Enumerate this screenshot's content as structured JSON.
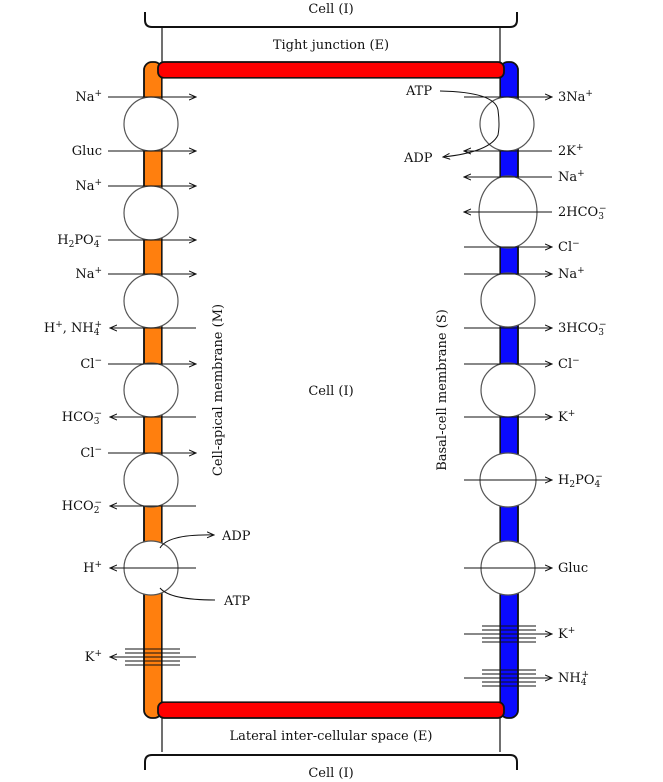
{
  "labels": {
    "cell_top": "Cell (I)",
    "tight_junction": "Tight junction (E)",
    "cell_center": "Cell (I)",
    "apical_membrane": "Cell-apical membrane (M)",
    "basal_membrane": "Basal-cell membrane (S)",
    "lateral_space": "Lateral inter-cellular space (E)",
    "cell_bottom": "Cell (I)"
  },
  "colors": {
    "apical": "#ff7f0e",
    "basal": "#0a0aff",
    "junction": "#ff0000"
  },
  "apical_transport": [
    {
      "id": "na-1",
      "label": "Na+",
      "dir": "in"
    },
    {
      "id": "gluc",
      "label": "Gluc",
      "dir": "in"
    },
    {
      "id": "na-2",
      "label": "Na+",
      "dir": "in"
    },
    {
      "id": "h2po4",
      "label": "H2PO4−",
      "dir": "in"
    },
    {
      "id": "na-3",
      "label": "Na+",
      "dir": "in"
    },
    {
      "id": "h-nh4",
      "label": "H+, NH4+",
      "dir": "out"
    },
    {
      "id": "cl-1",
      "label": "Cl−",
      "dir": "in"
    },
    {
      "id": "hco3-1",
      "label": "HCO3−",
      "dir": "out"
    },
    {
      "id": "cl-2",
      "label": "Cl−",
      "dir": "in"
    },
    {
      "id": "hco2",
      "label": "HCO2−",
      "dir": "out"
    },
    {
      "id": "h-atp",
      "label": "H+",
      "dir": "out"
    },
    {
      "id": "k",
      "label": "K+",
      "dir": "out"
    }
  ],
  "apical_atp": {
    "adp": "ADP",
    "atp": "ATP"
  },
  "basal_transport": [
    {
      "id": "3na",
      "label": "3Na+",
      "dir": "out"
    },
    {
      "id": "2k",
      "label": "2K+",
      "dir": "in"
    },
    {
      "id": "na",
      "label": "Na+",
      "dir": "in"
    },
    {
      "id": "2hco3",
      "label": "2HCO3−",
      "dir": "in"
    },
    {
      "id": "cl-1",
      "label": "Cl−",
      "dir": "out"
    },
    {
      "id": "na-2",
      "label": "Na+",
      "dir": "out"
    },
    {
      "id": "3hco3",
      "label": "3HCO3−",
      "dir": "out"
    },
    {
      "id": "cl-2",
      "label": "Cl−",
      "dir": "out"
    },
    {
      "id": "k",
      "label": "K+",
      "dir": "out"
    },
    {
      "id": "h2po4",
      "label": "H2PO4−",
      "dir": "out"
    },
    {
      "id": "gluc",
      "label": "Gluc",
      "dir": "out"
    },
    {
      "id": "k-2",
      "label": "K+",
      "dir": "out"
    },
    {
      "id": "nh4",
      "label": "NH4+",
      "dir": "out"
    }
  ],
  "basal_atp": {
    "atp": "ATP",
    "adp": "ADP"
  }
}
